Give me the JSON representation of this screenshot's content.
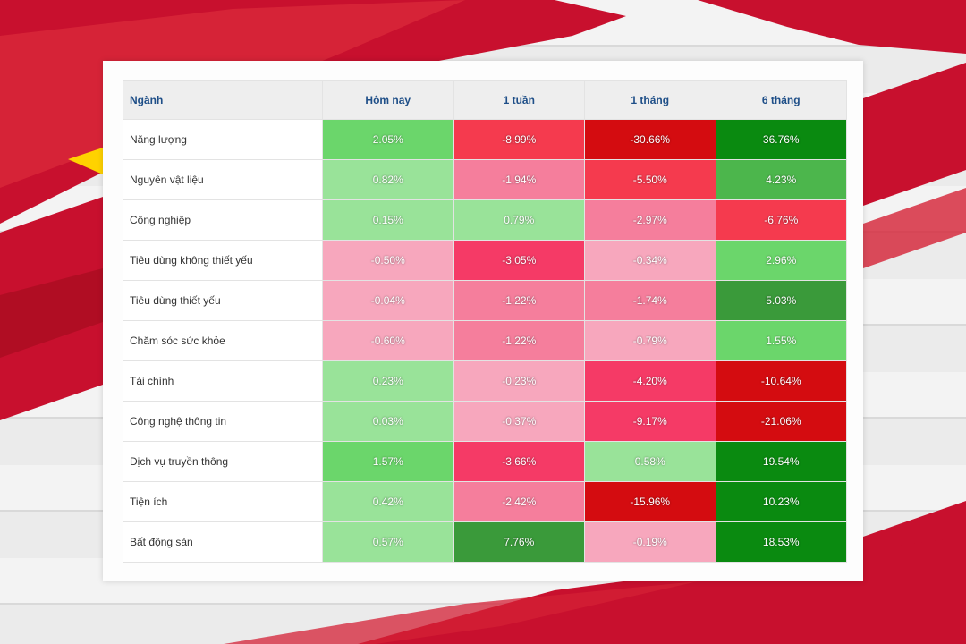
{
  "chart_data": {
    "type": "heatmap",
    "title": "",
    "columns": [
      "Ngành",
      "Hôm nay",
      "1 tuần",
      "1 tháng",
      "6 tháng"
    ],
    "rows": [
      {
        "sector": "Năng lượng",
        "values": [
          2.05,
          -8.99,
          -30.66,
          36.76
        ],
        "labels": [
          "2.05%",
          "-8.99%",
          "-30.66%",
          "36.76%"
        ]
      },
      {
        "sector": "Nguyên vật liệu",
        "values": [
          0.82,
          -1.94,
          -5.5,
          4.23
        ],
        "labels": [
          "0.82%",
          "-1.94%",
          "-5.50%",
          "4.23%"
        ]
      },
      {
        "sector": "Công nghiệp",
        "values": [
          0.15,
          0.79,
          -2.97,
          -6.76
        ],
        "labels": [
          "0.15%",
          "0.79%",
          "-2.97%",
          "-6.76%"
        ]
      },
      {
        "sector": "Tiêu dùng không thiết yếu",
        "values": [
          -0.5,
          -3.05,
          -0.34,
          2.96
        ],
        "labels": [
          "-0.50%",
          "-3.05%",
          "-0.34%",
          "2.96%"
        ]
      },
      {
        "sector": "Tiêu dùng thiết yếu",
        "values": [
          -0.04,
          -1.22,
          -1.74,
          5.03
        ],
        "labels": [
          "-0.04%",
          "-1.22%",
          "-1.74%",
          "5.03%"
        ]
      },
      {
        "sector": "Chăm sóc sức khỏe",
        "values": [
          -0.6,
          -1.22,
          -0.79,
          1.55
        ],
        "labels": [
          "-0.60%",
          "-1.22%",
          "-0.79%",
          "1.55%"
        ]
      },
      {
        "sector": "Tài chính",
        "values": [
          0.23,
          -0.23,
          -4.2,
          -10.64
        ],
        "labels": [
          "0.23%",
          "-0.23%",
          "-4.20%",
          "-10.64%"
        ]
      },
      {
        "sector": "Công nghệ thông tin",
        "values": [
          0.03,
          -0.37,
          -9.17,
          -21.06
        ],
        "labels": [
          "0.03%",
          "-0.37%",
          "-9.17%",
          "-21.06%"
        ]
      },
      {
        "sector": "Dịch vụ truyền thông",
        "values": [
          1.57,
          -3.66,
          0.58,
          19.54
        ],
        "labels": [
          "1.57%",
          "-3.66%",
          "0.58%",
          "19.54%"
        ]
      },
      {
        "sector": "Tiện ích",
        "values": [
          0.42,
          -2.42,
          -15.96,
          10.23
        ],
        "labels": [
          "0.42%",
          "-2.42%",
          "-15.96%",
          "10.23%"
        ]
      },
      {
        "sector": "Bất động sản",
        "values": [
          0.57,
          7.76,
          -0.19,
          18.53
        ],
        "labels": [
          "0.57%",
          "7.76%",
          "-0.19%",
          "18.53%"
        ]
      }
    ],
    "cell_colors": [
      [
        "#6bd66b",
        "#f53a4e",
        "#d40c10",
        "#0a8a10"
      ],
      [
        "#99e399",
        "#f57e9c",
        "#f53a4e",
        "#4cb64c"
      ],
      [
        "#99e399",
        "#99e399",
        "#f57e9c",
        "#f53a4e"
      ],
      [
        "#f7a7bd",
        "#f53a66",
        "#f7a7bd",
        "#6bd66b"
      ],
      [
        "#f7a7bd",
        "#f57e9c",
        "#f57e9c",
        "#3a9a3a"
      ],
      [
        "#f7a7bd",
        "#f57e9c",
        "#f7a7bd",
        "#6bd66b"
      ],
      [
        "#99e399",
        "#f7a7bd",
        "#f53a66",
        "#d40c10"
      ],
      [
        "#99e399",
        "#f7a7bd",
        "#f53a66",
        "#d40c10"
      ],
      [
        "#6bd66b",
        "#f53a66",
        "#99e399",
        "#0a8a10"
      ],
      [
        "#99e399",
        "#f57e9c",
        "#d40c10",
        "#0a8a10"
      ],
      [
        "#99e399",
        "#3a9a3a",
        "#f7a7bd",
        "#0a8a10"
      ]
    ]
  },
  "colors": {
    "header_text": "#1f4f88",
    "header_bg": "#eeeeee",
    "flag_red": "#c8102e",
    "star_yellow": "#ffd200"
  }
}
